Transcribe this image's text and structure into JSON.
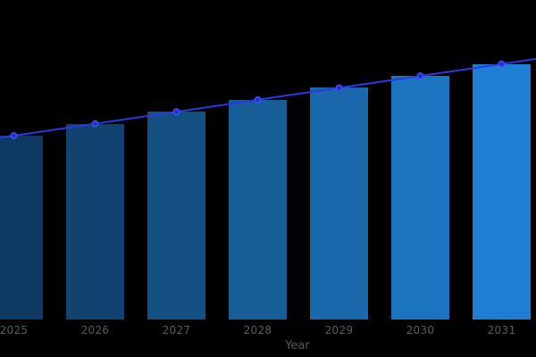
{
  "background": "#000000",
  "chart_data": {
    "type": "bar",
    "title": "",
    "xlabel": "Year",
    "ylabel": "",
    "categories": [
      "2025",
      "2026",
      "2027",
      "2028",
      "2029",
      "2030",
      "2031"
    ],
    "series": [
      {
        "name": "annual-value-bars",
        "type": "bar",
        "values": [
          100,
          106.5,
          113,
          119.5,
          126,
          132.5,
          139
        ],
        "bar_colors": [
          "#0e3963",
          "#124270",
          "#155083",
          "#175d97",
          "#1a68ab",
          "#1c73c0",
          "#1f7ed3"
        ]
      },
      {
        "name": "trend-line",
        "type": "line",
        "values": [
          100,
          106.5,
          113,
          119.5,
          126,
          132.5,
          139
        ],
        "line_color": "#2839e0",
        "marker": "circle",
        "marker_fill": "#2030c8",
        "marker_stroke": "#3a52f2"
      }
    ],
    "ylim": [
      0,
      174
    ],
    "values_note": "no y-axis visible; values are estimated relative units (2025 = 100)",
    "yaxis_visible": false,
    "grid": false,
    "legend": false,
    "line_extends_past_plot_edges": true,
    "first_bar_clipped_left": true,
    "tick_label_color": "#585c60",
    "xlabel_color": "#53575c"
  }
}
